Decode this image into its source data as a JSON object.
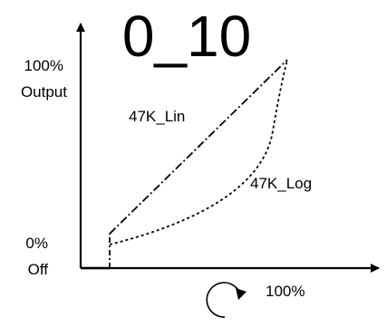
{
  "title": "0_10",
  "y_axis": {
    "top_value": "100%",
    "top_label": "Output",
    "bottom_value": "0%",
    "bottom_label": "Off"
  },
  "x_axis": {
    "end_label": "100%",
    "rotation_icon": "clockwise-rotation-icon"
  },
  "curves": {
    "linear_label": "47K_Lin",
    "log_label": "47K_Log"
  },
  "colors": {
    "ink": "#000000",
    "background": "#ffffff"
  }
}
